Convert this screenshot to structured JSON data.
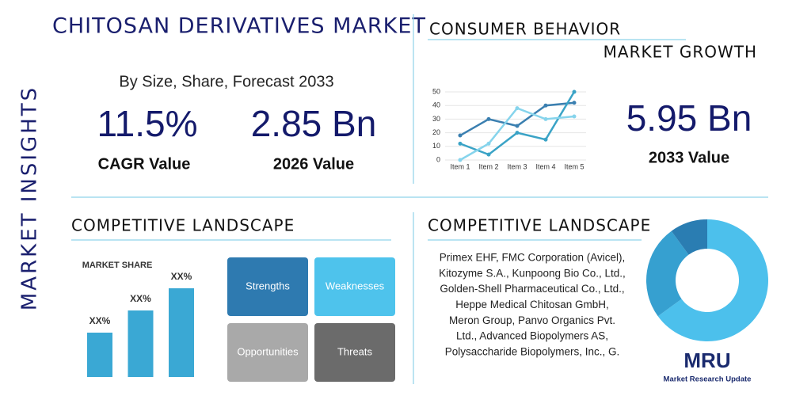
{
  "side_label": "MARKET INSIGHTS",
  "header": {
    "title": "CHITOSAN DERIVATIVES MARKET",
    "subtitle": "By Size, Share, Forecast 2033"
  },
  "stats": [
    {
      "value": "11.5%",
      "label": "CAGR Value"
    },
    {
      "value": "2.85 Bn",
      "label": "2026 Value"
    },
    {
      "value": "5.95 Bn",
      "label": "2033 Value"
    }
  ],
  "consumer": {
    "title": "CONSUMER BEHAVIOR",
    "subtitle": "MARKET GROWTH"
  },
  "line_chart": {
    "type": "line",
    "categories": [
      "Item 1",
      "Item 2",
      "Item 3",
      "Item 4",
      "Item 5"
    ],
    "ylim": [
      0,
      50
    ],
    "yticks": [
      0,
      10,
      20,
      30,
      40,
      50
    ],
    "series": [
      {
        "color": "#3a7fb0",
        "values": [
          18,
          30,
          25,
          40,
          42
        ]
      },
      {
        "color": "#3aa3c6",
        "values": [
          12,
          4,
          20,
          15,
          50
        ]
      },
      {
        "color": "#86d4ec",
        "values": [
          0,
          12,
          38,
          30,
          32
        ]
      }
    ]
  },
  "competitive_left": {
    "title": "COMPETITIVE LANDSCAPE",
    "bar_chart": {
      "type": "bar",
      "title": "MARKET SHARE",
      "values": [
        20,
        30,
        40
      ],
      "labels": [
        "XX%",
        "XX%",
        "XX%"
      ],
      "color": "#3aa8d4"
    }
  },
  "swot": [
    "Strengths",
    "Weaknesses",
    "Opportunities",
    "Threats"
  ],
  "competitive_right": {
    "title": "COMPETITIVE LANDSCAPE",
    "companies": [
      "Primex EHF, FMC Corporation (Avicel),",
      "Kitozyme S.A., Kunpoong Bio Co., Ltd.,",
      "Golden-Shell Pharmaceutical Co., Ltd.,",
      "Heppe Medical Chitosan GmbH,",
      "Meron Group, Panvo Organics Pvt.",
      "Ltd., Advanced Biopolymers AS,",
      "Polysaccharide Biopolymers, Inc., G."
    ]
  },
  "donut": {
    "type": "pie",
    "values": [
      65,
      25,
      10
    ],
    "colors": [
      "#4cc0ec",
      "#36a0d0",
      "#2a7db2"
    ]
  },
  "logo": {
    "mark": "MRU",
    "name": "Market Research Update"
  }
}
